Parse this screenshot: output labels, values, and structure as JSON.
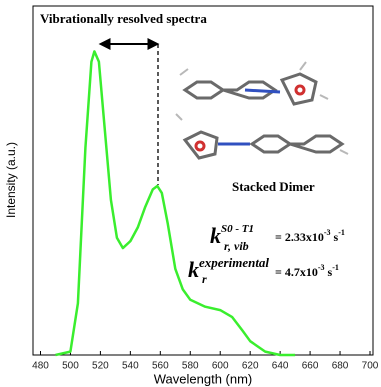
{
  "chart_data": {
    "type": "line",
    "x_label": "Wavelength (nm)",
    "y_label": "Intensity (a.u.)",
    "xlim": [
      475,
      700
    ],
    "ylim": [
      0,
      1
    ],
    "xticks": [
      480,
      500,
      520,
      540,
      560,
      580,
      600,
      620,
      640,
      660,
      680,
      700
    ],
    "series": [
      {
        "name": "Stacked Dimer",
        "color": "#3aee2e",
        "x": [
          490,
          500,
          505,
          510,
          514,
          516,
          519,
          523,
          527,
          531,
          535,
          540,
          545,
          550,
          555,
          558,
          561,
          565,
          570,
          575,
          580,
          590,
          600,
          608,
          615,
          620,
          630,
          640,
          650
        ],
        "values": [
          0,
          0.01,
          0.15,
          0.6,
          0.85,
          0.88,
          0.85,
          0.65,
          0.45,
          0.34,
          0.31,
          0.33,
          0.37,
          0.43,
          0.48,
          0.49,
          0.47,
          0.38,
          0.25,
          0.19,
          0.16,
          0.14,
          0.13,
          0.11,
          0.07,
          0.04,
          0.01,
          0,
          0
        ]
      }
    ],
    "annotations": {
      "arrow_label": "Vibrationally resolved spectra",
      "structure_label": "Stacked Dimer",
      "rate_vib": {
        "symbol": "k",
        "superscript": "S0 - T1",
        "subscript": "r, vib",
        "value": "= 2.33x10",
        "exponent": "-3",
        "unit": " s",
        "unit_exponent": "-1"
      },
      "rate_exp": {
        "symbol": "k",
        "superscript": "experimental",
        "subscript": "r",
        "value": "= 4.7x10",
        "exponent": "-3",
        "unit": " s",
        "unit_exponent": "-1"
      }
    }
  }
}
